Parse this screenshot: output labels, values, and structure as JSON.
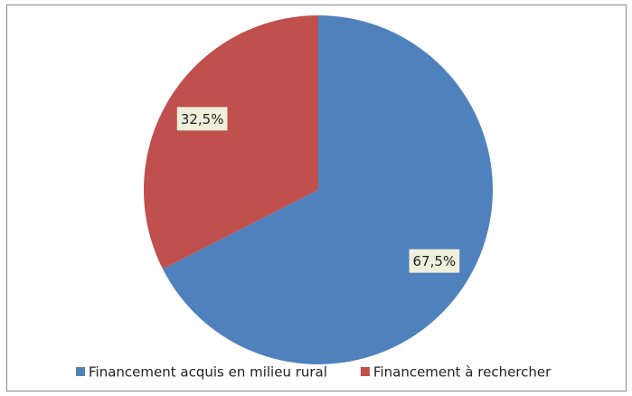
{
  "chart_data": {
    "type": "pie",
    "categories": [
      "Financement acquis en milieu rural",
      "Financement à rechercher"
    ],
    "values": [
      67.5,
      32.5
    ],
    "value_labels": [
      "67,5%",
      "32,5%"
    ],
    "colors": [
      "#4f81bd",
      "#c0504d"
    ],
    "legend": "bottom"
  }
}
